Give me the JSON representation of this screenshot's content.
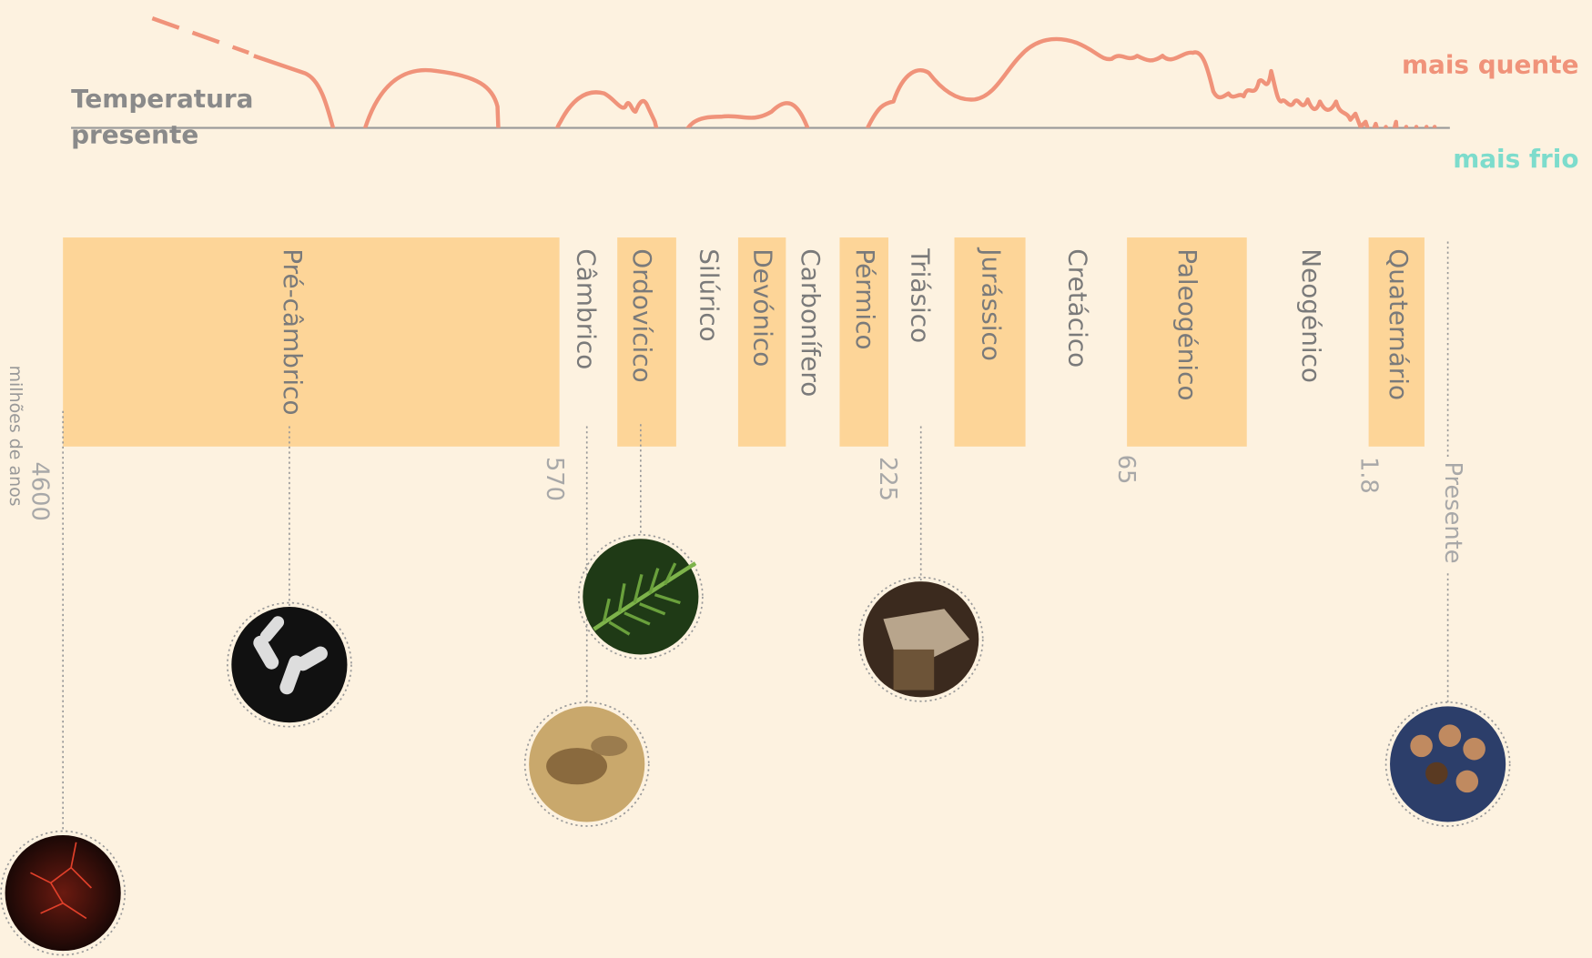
{
  "temperature": {
    "present_lines": [
      "Temperatura",
      "presente"
    ],
    "warmer": "mais quente",
    "colder": "mais frio"
  },
  "periods": [
    {
      "name": "Pré-câmbrico"
    },
    {
      "name": "Câmbrico"
    },
    {
      "name": "Ordovícico"
    },
    {
      "name": "Silúrico"
    },
    {
      "name": "Devónico"
    },
    {
      "name": "Carbonífero"
    },
    {
      "name": "Pérmico"
    },
    {
      "name": "Triásico"
    },
    {
      "name": "Jurássico"
    },
    {
      "name": "Cretácico"
    },
    {
      "name": "Paleogénico"
    },
    {
      "name": "Neogénico"
    },
    {
      "name": "Quaternário"
    }
  ],
  "ages": {
    "unit": "milhões de anos",
    "marks": [
      "4600",
      "570",
      "225",
      "65",
      "1.8",
      "Presente"
    ]
  }
}
